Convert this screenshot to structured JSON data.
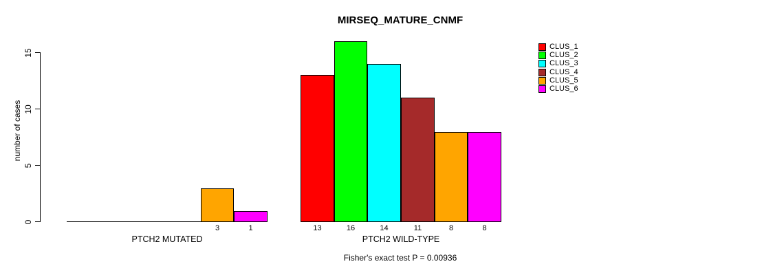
{
  "chart_data": {
    "type": "bar",
    "title": "MIRSEQ_MATURE_CNMF",
    "ylabel": "number of cases",
    "xlabel": "",
    "yticks": [
      0,
      5,
      10,
      15
    ],
    "ylim": [
      0,
      16.5
    ],
    "grid": false,
    "legend_position": "top-right",
    "categories": [
      "PTCH2 MUTATED",
      "PTCH2 WILD-TYPE"
    ],
    "series": [
      {
        "name": "CLUS_1",
        "color": "#FF0000",
        "values": [
          0,
          13
        ]
      },
      {
        "name": "CLUS_2",
        "color": "#00FF00",
        "values": [
          0,
          16
        ]
      },
      {
        "name": "CLUS_3",
        "color": "#00FFFF",
        "values": [
          0,
          14
        ]
      },
      {
        "name": "CLUS_4",
        "color": "#A52A2A",
        "values": [
          0,
          11
        ]
      },
      {
        "name": "CLUS_5",
        "color": "#FFA500",
        "values": [
          3,
          8
        ]
      },
      {
        "name": "CLUS_6",
        "color": "#FF00FF",
        "values": [
          1,
          8
        ]
      }
    ],
    "bar_value_labels": {
      "PTCH2 MUTATED": [
        3,
        1
      ],
      "PTCH2 WILD-TYPE": [
        13,
        16,
        14,
        11,
        8,
        8
      ]
    },
    "footnote": "Fisher's exact test P = 0.00936"
  }
}
